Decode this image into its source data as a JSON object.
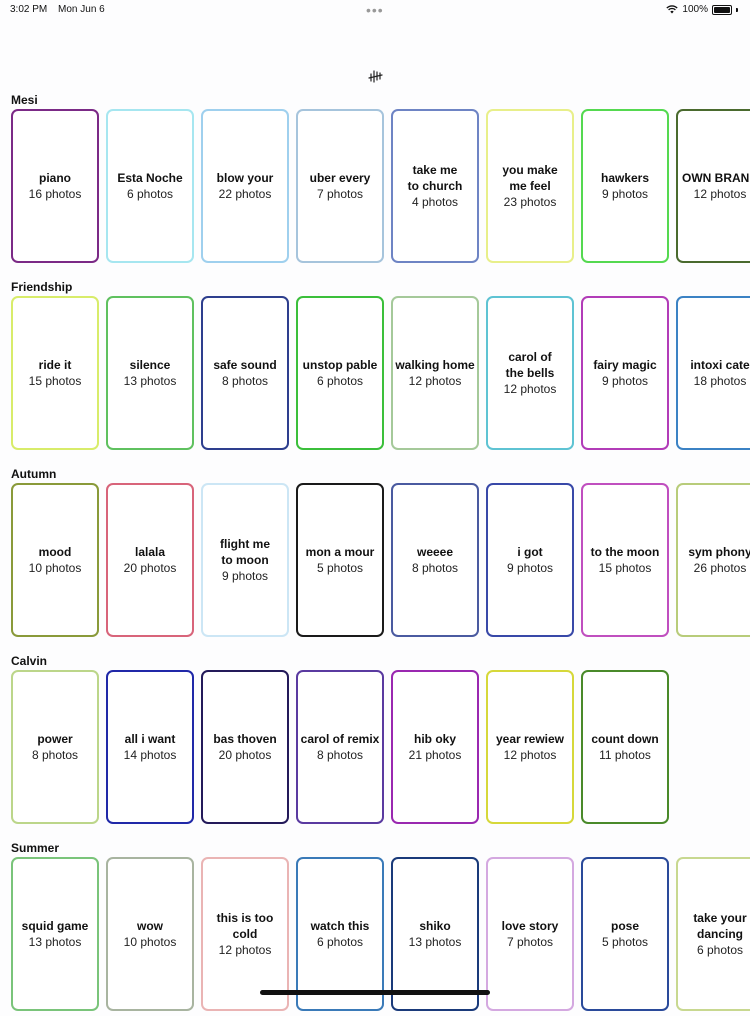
{
  "status": {
    "time": "3:02 PM",
    "date": "Mon Jun 6",
    "battery": "100%"
  },
  "sections": [
    {
      "title": "Mesi",
      "cards": [
        {
          "title": "piano",
          "count": "16 photos",
          "color": "#7b2a86"
        },
        {
          "title": "Esta Noche",
          "count": "6 photos",
          "color": "#a6e6f0"
        },
        {
          "title": "blow your",
          "count": "22 photos",
          "color": "#9fd0ee"
        },
        {
          "title": "uber every",
          "count": "7 photos",
          "color": "#a6c4dc"
        },
        {
          "title": "take me\nto church",
          "count": "4 photos",
          "color": "#6e84c4"
        },
        {
          "title": "you make\nme feel",
          "count": "23 photos",
          "color": "#e8ef8a"
        },
        {
          "title": "hawkers",
          "count": "9 photos",
          "color": "#55d950"
        },
        {
          "title": "OWN BRAND",
          "count": "12 photos",
          "color": "#4a6a2e"
        }
      ]
    },
    {
      "title": "Friendship",
      "cards": [
        {
          "title": "ride it",
          "count": "15 photos",
          "color": "#d8ec6a"
        },
        {
          "title": "silence",
          "count": "13 photos",
          "color": "#5fc15f"
        },
        {
          "title": "safe sound",
          "count": "8 photos",
          "color": "#2e3f8e"
        },
        {
          "title": "unstop pable",
          "count": "6 photos",
          "color": "#3bbf3b"
        },
        {
          "title": "walking home",
          "count": "12 photos",
          "color": "#a5c99a"
        },
        {
          "title": "carol of\nthe bells",
          "count": "12 photos",
          "color": "#5ec3d3"
        },
        {
          "title": "fairy magic",
          "count": "9 photos",
          "color": "#b23cb8"
        },
        {
          "title": "intoxi cate",
          "count": "18 photos",
          "color": "#3b82c4"
        }
      ]
    },
    {
      "title": "Autumn",
      "cards": [
        {
          "title": "mood",
          "count": "10 photos",
          "color": "#8a9a3a"
        },
        {
          "title": "lalala",
          "count": "20 photos",
          "color": "#d8647a"
        },
        {
          "title": "flight me\nto moon",
          "count": "9 photos",
          "color": "#cce6f5"
        },
        {
          "title": "mon a mour",
          "count": "5 photos",
          "color": "#1a1a1a"
        },
        {
          "title": "weeee",
          "count": "8 photos",
          "color": "#4a5aa0"
        },
        {
          "title": "i got",
          "count": "9 photos",
          "color": "#3848a8"
        },
        {
          "title": "to the moon",
          "count": "15 photos",
          "color": "#c04fbf"
        },
        {
          "title": "sym phony",
          "count": "26 photos",
          "color": "#b8cc7a"
        }
      ]
    },
    {
      "title": "Calvin",
      "cards": [
        {
          "title": "power",
          "count": "8 photos",
          "color": "#bcd68a"
        },
        {
          "title": "all i want",
          "count": "14 photos",
          "color": "#2028a8"
        },
        {
          "title": "bas thoven",
          "count": "20 photos",
          "color": "#241a5a"
        },
        {
          "title": "carol of remix",
          "count": "8 photos",
          "color": "#5a3aa0"
        },
        {
          "title": "hib oky",
          "count": "21 photos",
          "color": "#9a28b0"
        },
        {
          "title": "year rewiew",
          "count": "12 photos",
          "color": "#d6d83a"
        },
        {
          "title": "count down",
          "count": "11 photos",
          "color": "#4a8a2a"
        }
      ]
    },
    {
      "title": "Summer",
      "cards": [
        {
          "title": "squid game",
          "count": "13 photos",
          "color": "#7ac47a"
        },
        {
          "title": "wow",
          "count": "10 photos",
          "color": "#a8b4a0"
        },
        {
          "title": "this is too cold",
          "count": "12 photos",
          "color": "#eab4b4"
        },
        {
          "title": "watch this",
          "count": "6 photos",
          "color": "#3a7ab8"
        },
        {
          "title": "shiko",
          "count": "13 photos",
          "color": "#1a3a7a"
        },
        {
          "title": "love story",
          "count": "7 photos",
          "color": "#d4a8e0"
        },
        {
          "title": "pose",
          "count": "5 photos",
          "color": "#2a4a9a"
        },
        {
          "title": "take your\ndancing",
          "count": "6 photos",
          "color": "#c8d890"
        }
      ]
    }
  ]
}
